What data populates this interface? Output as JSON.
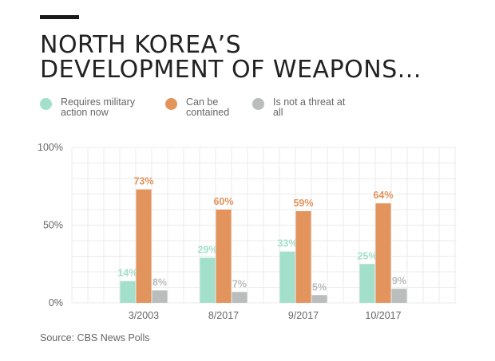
{
  "header": {
    "title_line1": "NORTH KOREA’S",
    "title_line2": "DEVELOPMENT OF WEAPONS..."
  },
  "legend": [
    {
      "label": "Requires military action now",
      "color": "#a3e0cb"
    },
    {
      "label": "Can be contained",
      "color": "#e3935c"
    },
    {
      "label": "Is not a threat at all",
      "color": "#b9bdbc"
    }
  ],
  "source": "Source: CBS News Polls",
  "chart_data": {
    "type": "bar",
    "categories": [
      "3/2003",
      "8/2017",
      "9/2017",
      "10/2017"
    ],
    "series": [
      {
        "name": "Requires military action now",
        "values": [
          14,
          29,
          33,
          25
        ],
        "color": "#a3e0cb"
      },
      {
        "name": "Can be contained",
        "values": [
          73,
          60,
          59,
          64
        ],
        "color": "#e3935c"
      },
      {
        "name": "Is not a threat at all",
        "values": [
          8,
          7,
          5,
          9
        ],
        "color": "#b9bdbc"
      }
    ],
    "value_suffix": "%",
    "ylim": [
      0,
      100
    ],
    "yticks": [
      0,
      50,
      100
    ],
    "ytick_labels": [
      "0%",
      "50%",
      "100%"
    ],
    "grid": true,
    "legend_position": "top-left",
    "title": "",
    "xlabel": "",
    "ylabel": ""
  }
}
